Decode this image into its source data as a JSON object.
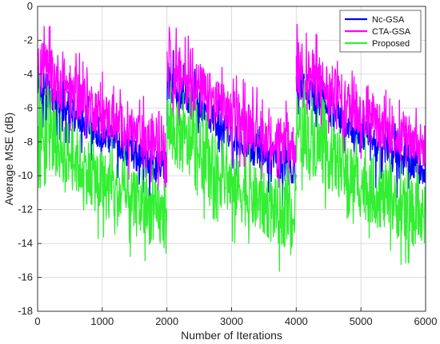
{
  "chart_data": {
    "type": "line",
    "title": "",
    "xlabel": "Number of Iterations",
    "ylabel": "Average MSE (dB)",
    "xlim": [
      0,
      6000
    ],
    "ylim": [
      -18,
      0
    ],
    "x_ticks": [
      0,
      1000,
      2000,
      3000,
      4000,
      5000,
      6000
    ],
    "y_ticks": [
      0,
      -2,
      -4,
      -6,
      -8,
      -10,
      -12,
      -14,
      -16,
      -18
    ],
    "grid": true,
    "legend_position": "top-right",
    "segments": [
      [
        0,
        2000
      ],
      [
        2000,
        4000
      ],
      [
        4000,
        6000
      ]
    ],
    "series": [
      {
        "name": "Nc-GSA",
        "color": "#0000ff",
        "envelope": {
          "x": [
            0,
            500,
            1000,
            1500,
            2000
          ],
          "upper": [
            -3.5,
            -5.0,
            -6.5,
            -7.8,
            -8.6
          ],
          "lower": [
            -5.5,
            -7.0,
            -8.5,
            -9.8,
            -10.6
          ]
        }
      },
      {
        "name": "CTA-GSA",
        "color": "#ff00ff",
        "envelope": {
          "x": [
            0,
            500,
            1000,
            1500,
            2000
          ],
          "upper": [
            -1.8,
            -3.3,
            -5.0,
            -6.2,
            -7.0
          ],
          "lower": [
            -5.2,
            -6.5,
            -7.8,
            -8.9,
            -9.6
          ]
        }
      },
      {
        "name": "Proposed",
        "color": "#33ee33",
        "envelope": {
          "x": [
            0,
            500,
            1000,
            1500,
            2000
          ],
          "upper": [
            -5.0,
            -6.8,
            -8.5,
            -9.8,
            -10.6
          ],
          "lower": [
            -9.2,
            -10.8,
            -12.5,
            -13.6,
            -14.6
          ]
        }
      }
    ]
  }
}
